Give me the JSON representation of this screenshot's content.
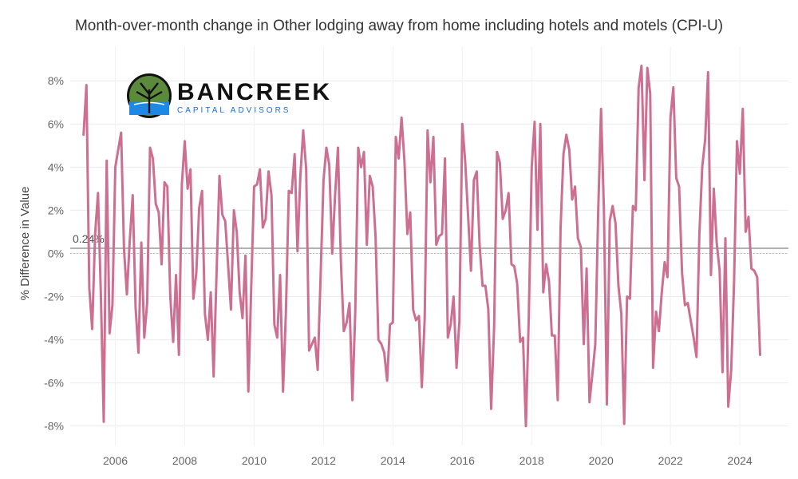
{
  "logo": {
    "title": "BANCREEK",
    "subtitle": "CAPITAL ADVISORS"
  },
  "chart_data": {
    "type": "line",
    "title": "Month-over-month change in Other lodging away from home including hotels and motels (CPI-U)",
    "xlabel": "",
    "ylabel": "% Difference in Value",
    "xlim": [
      2004.7,
      2025.4
    ],
    "ylim": [
      -8.9,
      9.6
    ],
    "x_ticks": [
      2006,
      2008,
      2010,
      2012,
      2014,
      2016,
      2018,
      2020,
      2022,
      2024
    ],
    "y_ticks": [
      -8,
      -6,
      -4,
      -2,
      0,
      2,
      4,
      6,
      8
    ],
    "y_tick_suffix": "%",
    "grid": "horizontal",
    "series_color": "#cc6f91",
    "reference_line": {
      "value": 0.24,
      "label": "0.24%",
      "color": "#999999"
    },
    "series": [
      {
        "values": [
          5.5,
          7.8,
          -1.6,
          -3.5,
          0.9,
          2.8,
          -1.9,
          -7.8,
          4.3,
          -3.7,
          -2.4,
          4.0,
          4.8,
          5.6,
          0.2,
          -1.9,
          0.6,
          2.7,
          -2.5,
          -4.6,
          0.5,
          -3.9,
          -2.3,
          4.9,
          4.4,
          2.3,
          1.9,
          -0.5,
          3.3,
          3.1,
          -2.0,
          -4.1,
          -1.0,
          -4.7,
          3.2,
          5.2,
          3.0,
          3.9,
          -2.1,
          -0.9,
          2.1,
          2.9,
          -2.8,
          -4.0,
          -1.8,
          -5.7,
          -1.0,
          3.6,
          1.8,
          1.5,
          -0.5,
          -2.6,
          2.0,
          1.0,
          -1.8,
          -3.0,
          -0.1,
          -6.4,
          -1.6,
          3.1,
          3.2,
          3.9,
          1.2,
          1.6,
          3.8,
          2.7,
          -3.3,
          -3.9,
          -1.0,
          -6.4,
          -2.7,
          2.9,
          2.8,
          4.6,
          0.1,
          3.6,
          5.7,
          3.9,
          -4.5,
          -4.2,
          -3.9,
          -5.4,
          -1.0,
          3.4,
          4.9,
          4.1,
          0.0,
          2.7,
          4.9,
          -0.3,
          -3.6,
          -3.2,
          -2.3,
          -6.8,
          -2.7,
          4.9,
          4.0,
          4.7,
          0.4,
          3.6,
          3.1,
          0.8,
          -4.0,
          -4.2,
          -4.6,
          -5.9,
          -3.3,
          -3.2,
          5.4,
          4.4,
          6.3,
          4.3,
          0.9,
          1.9,
          -2.6,
          -3.1,
          -2.9,
          -6.2,
          -3.0,
          5.7,
          3.3,
          5.4,
          0.4,
          0.8,
          0.9,
          4.4,
          -3.9,
          -3.3,
          -2.0,
          -5.3,
          -3.1,
          6.0,
          4.3,
          1.8,
          -0.8,
          3.4,
          3.8,
          0.4,
          -1.5,
          -1.5,
          -2.6,
          -7.2,
          -3.4,
          4.7,
          4.2,
          1.6,
          2.0,
          2.8,
          -0.5,
          -0.6,
          -1.4,
          -4.1,
          -3.9,
          -8.0,
          -3.0,
          4.0,
          6.1,
          1.1,
          6.0,
          -1.8,
          -0.5,
          -1.3,
          -3.8,
          -3.8,
          -6.8,
          1.2,
          4.6,
          5.5,
          4.8,
          2.5,
          3.1,
          0.7,
          0.3,
          -4.2,
          -0.7,
          -6.9,
          -5.6,
          -4.2,
          1.9,
          6.7,
          2.0,
          -7.0,
          1.5,
          2.2,
          1.4,
          -1.5,
          -2.8,
          -7.9,
          -2.0,
          -2.1,
          2.2,
          2.0,
          7.7,
          8.7,
          3.4,
          8.6,
          7.4,
          -5.3,
          -2.7,
          -3.6,
          -1.8,
          -0.4,
          -1.1,
          6.3,
          7.7,
          3.5,
          3.1,
          -0.9,
          -2.4,
          -2.3,
          -3.1,
          -3.9,
          -4.8,
          0.9,
          4.0,
          5.3,
          8.4,
          -1.0,
          3.0,
          0.5,
          -0.8,
          -5.5,
          0.7,
          -7.1,
          -5.4,
          -1.3,
          5.2,
          3.7,
          6.7,
          1.0,
          1.7,
          -0.7,
          -0.8,
          -1.1,
          -4.7
        ]
      }
    ]
  }
}
